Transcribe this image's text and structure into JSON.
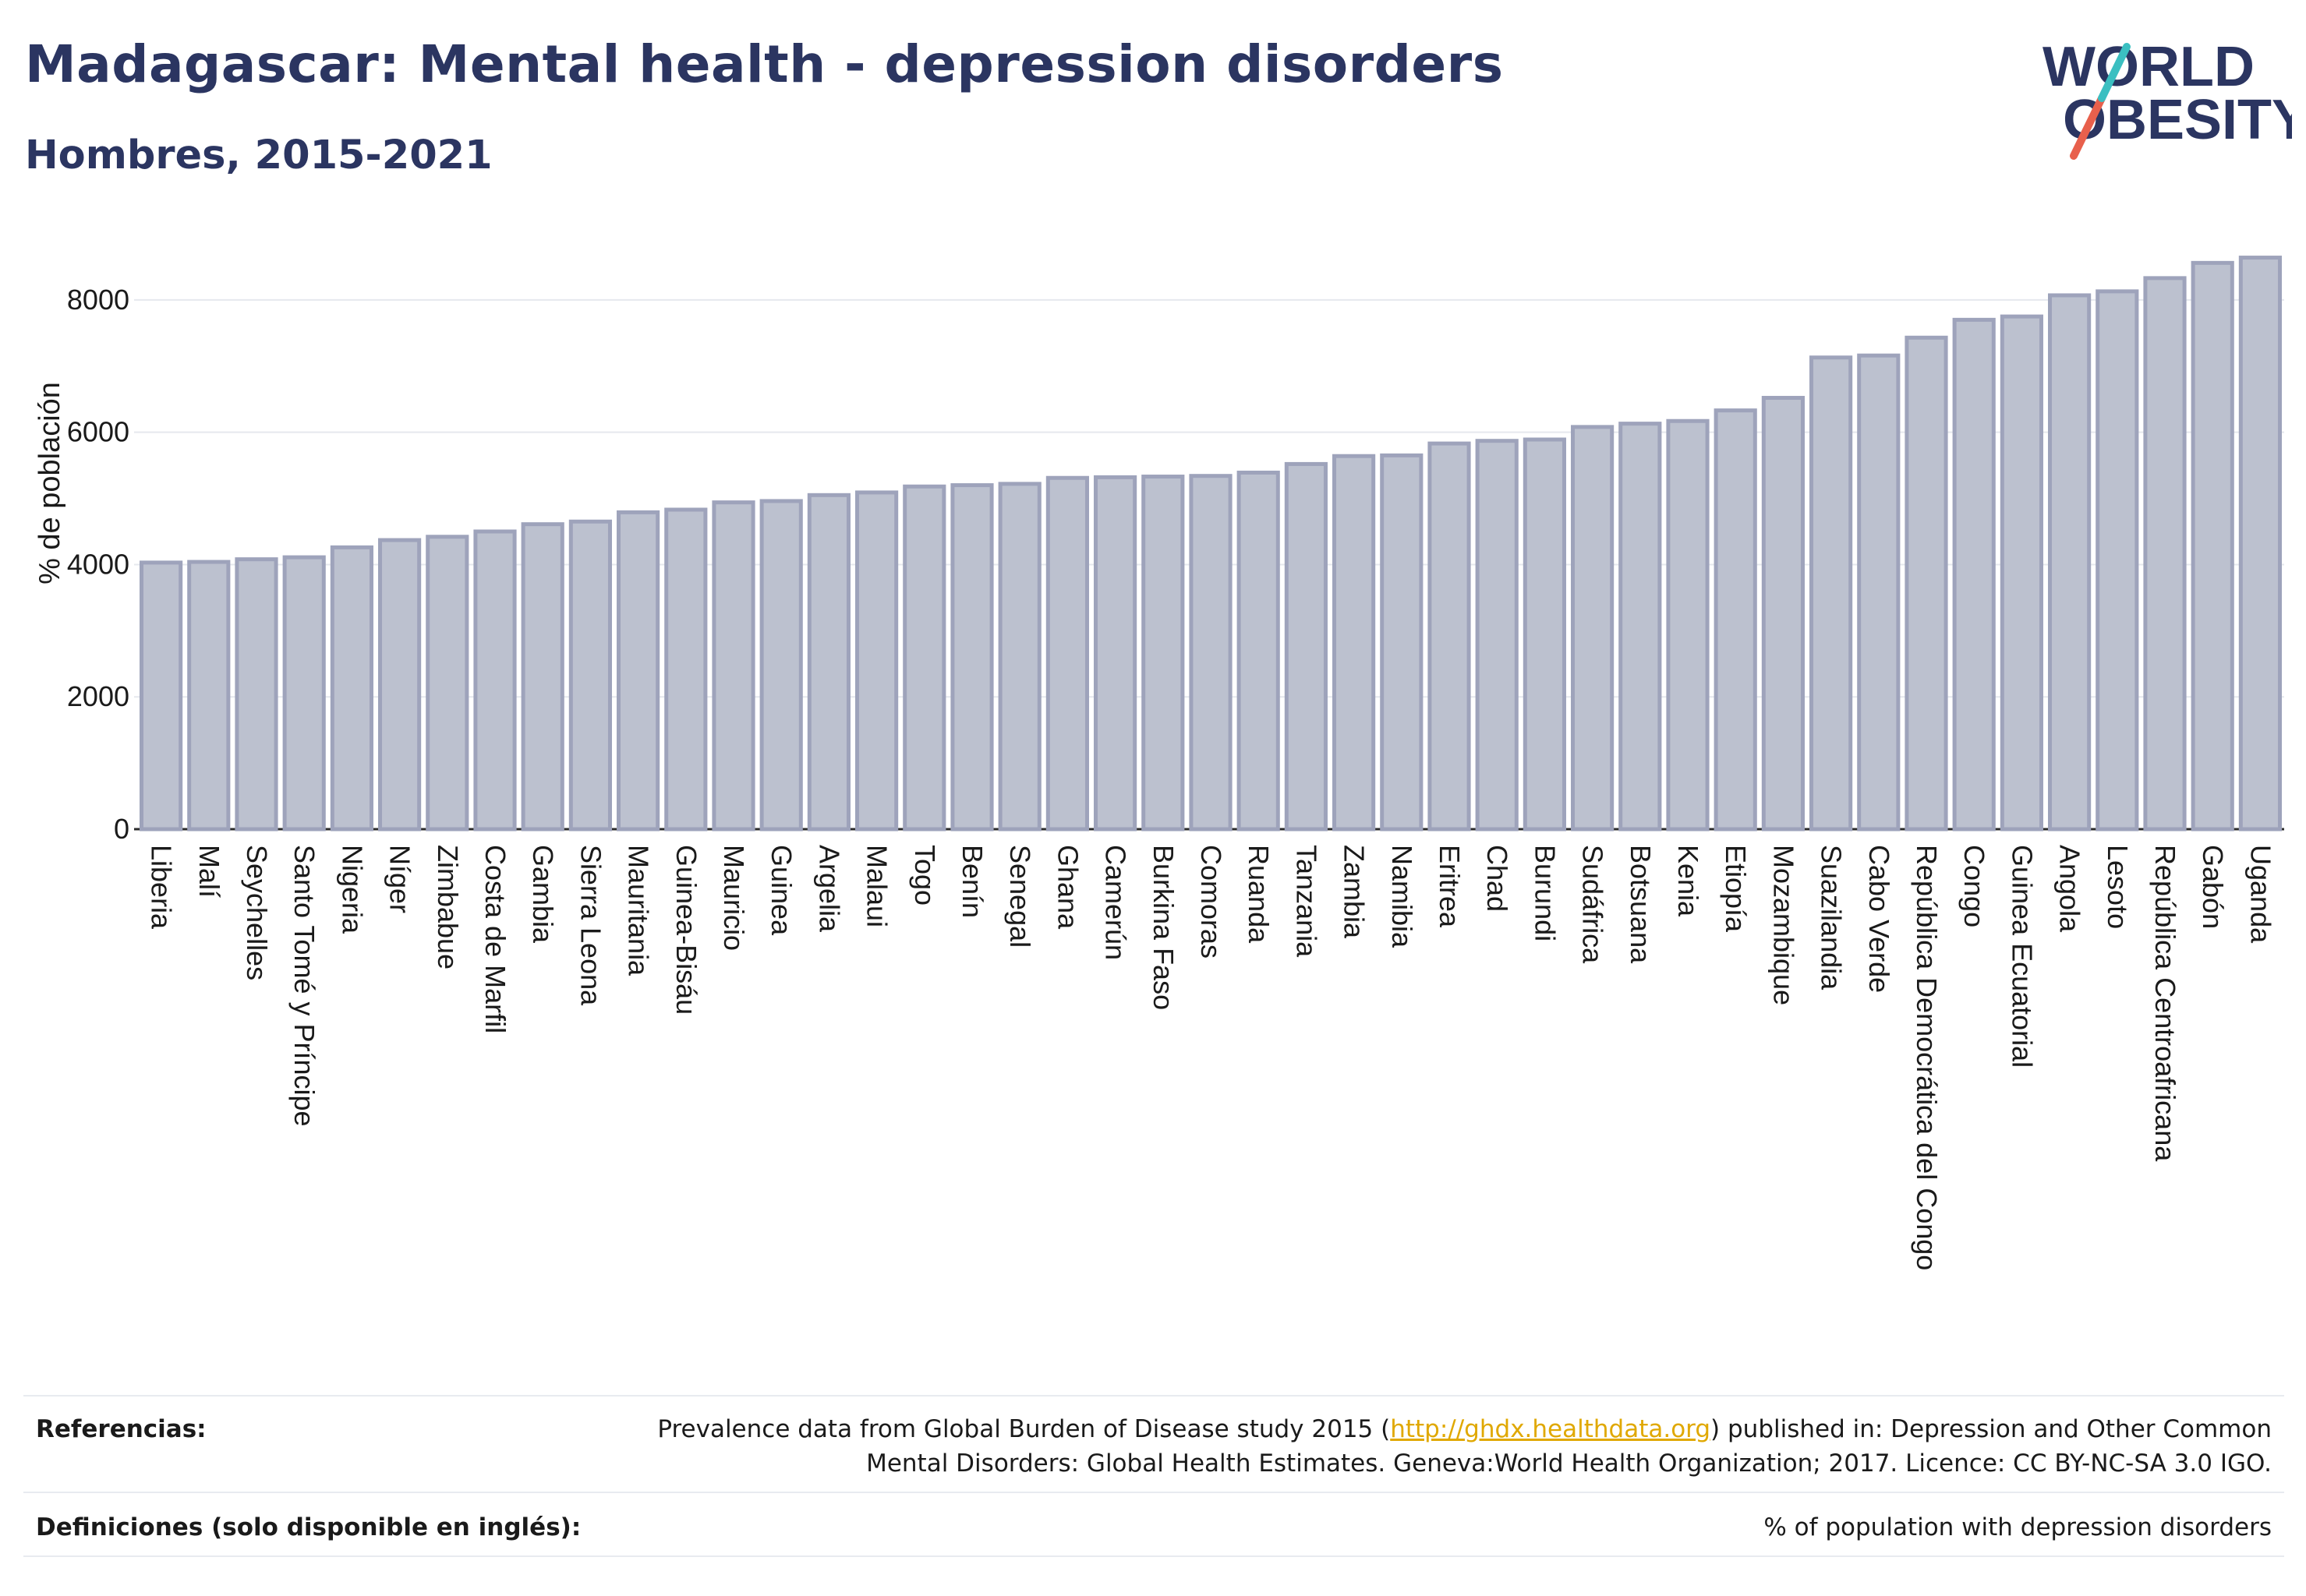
{
  "header": {
    "title": "Madagascar: Mental health - depression disorders",
    "subtitle": "Hombres, 2015-2021"
  },
  "logo": {
    "line1": "WORLD",
    "line2": "OBESITY",
    "colors": {
      "text": "#2b3561",
      "slash_teal": "#3bbfc1",
      "slash_red": "#e8604c"
    }
  },
  "chart_data": {
    "type": "bar",
    "title": "",
    "xlabel": "",
    "ylabel": "% de población",
    "ylim": [
      0,
      9000
    ],
    "yticks": [
      0,
      2000,
      4000,
      6000,
      8000
    ],
    "grid": true,
    "bar_fill": "#bcc1cf",
    "bar_stroke": "#9ea3bb",
    "categories": [
      "Liberia",
      "Malí",
      "Seychelles",
      "Santo Tomé y Príncipe",
      "Nigeria",
      "Níger",
      "Zimbabue",
      "Costa de Marfil",
      "Gambia",
      "Sierra Leona",
      "Mauritania",
      "Guinea-Bisáu",
      "Mauricio",
      "Guinea",
      "Argelia",
      "Malaui",
      "Togo",
      "Benín",
      "Senegal",
      "Ghana",
      "Camerún",
      "Burkina Faso",
      "Comoras",
      "Ruanda",
      "Tanzania",
      "Zambia",
      "Namibia",
      "Eritrea",
      "Chad",
      "Burundi",
      "Sudáfrica",
      "Botsuana",
      "Kenia",
      "Etiopía",
      "Mozambique",
      "Suazilandia",
      "Cabo Verde",
      "República Democrática del Congo",
      "Congo",
      "Guinea Ecuatorial",
      "Angola",
      "Lesoto",
      "República Centroafricana",
      "Gabón",
      "Uganda"
    ],
    "values": [
      4030,
      4040,
      4080,
      4110,
      4260,
      4370,
      4420,
      4500,
      4610,
      4650,
      4790,
      4830,
      4940,
      4960,
      5050,
      5090,
      5180,
      5200,
      5220,
      5310,
      5320,
      5330,
      5340,
      5390,
      5520,
      5640,
      5650,
      5830,
      5870,
      5890,
      6080,
      6130,
      6170,
      6330,
      6520,
      7130,
      7160,
      7430,
      7700,
      7750,
      8070,
      8130,
      8330,
      8560,
      8640
    ]
  },
  "footer": {
    "references_label": "Referencias:",
    "references_text_1": "Prevalence data from Global Burden of Disease study 2015 (",
    "references_link": "http://ghdx.healthdata.org",
    "references_text_2": ") published in: Depression and Other Common",
    "references_text_3": "Mental Disorders: Global Health Estimates. Geneva:World Health Organization; 2017. Licence: CC BY-NC-SA 3.0 IGO.",
    "definitions_label": "Definiciones (solo disponible en inglés):",
    "definitions_text": "% of population with depression disorders"
  }
}
